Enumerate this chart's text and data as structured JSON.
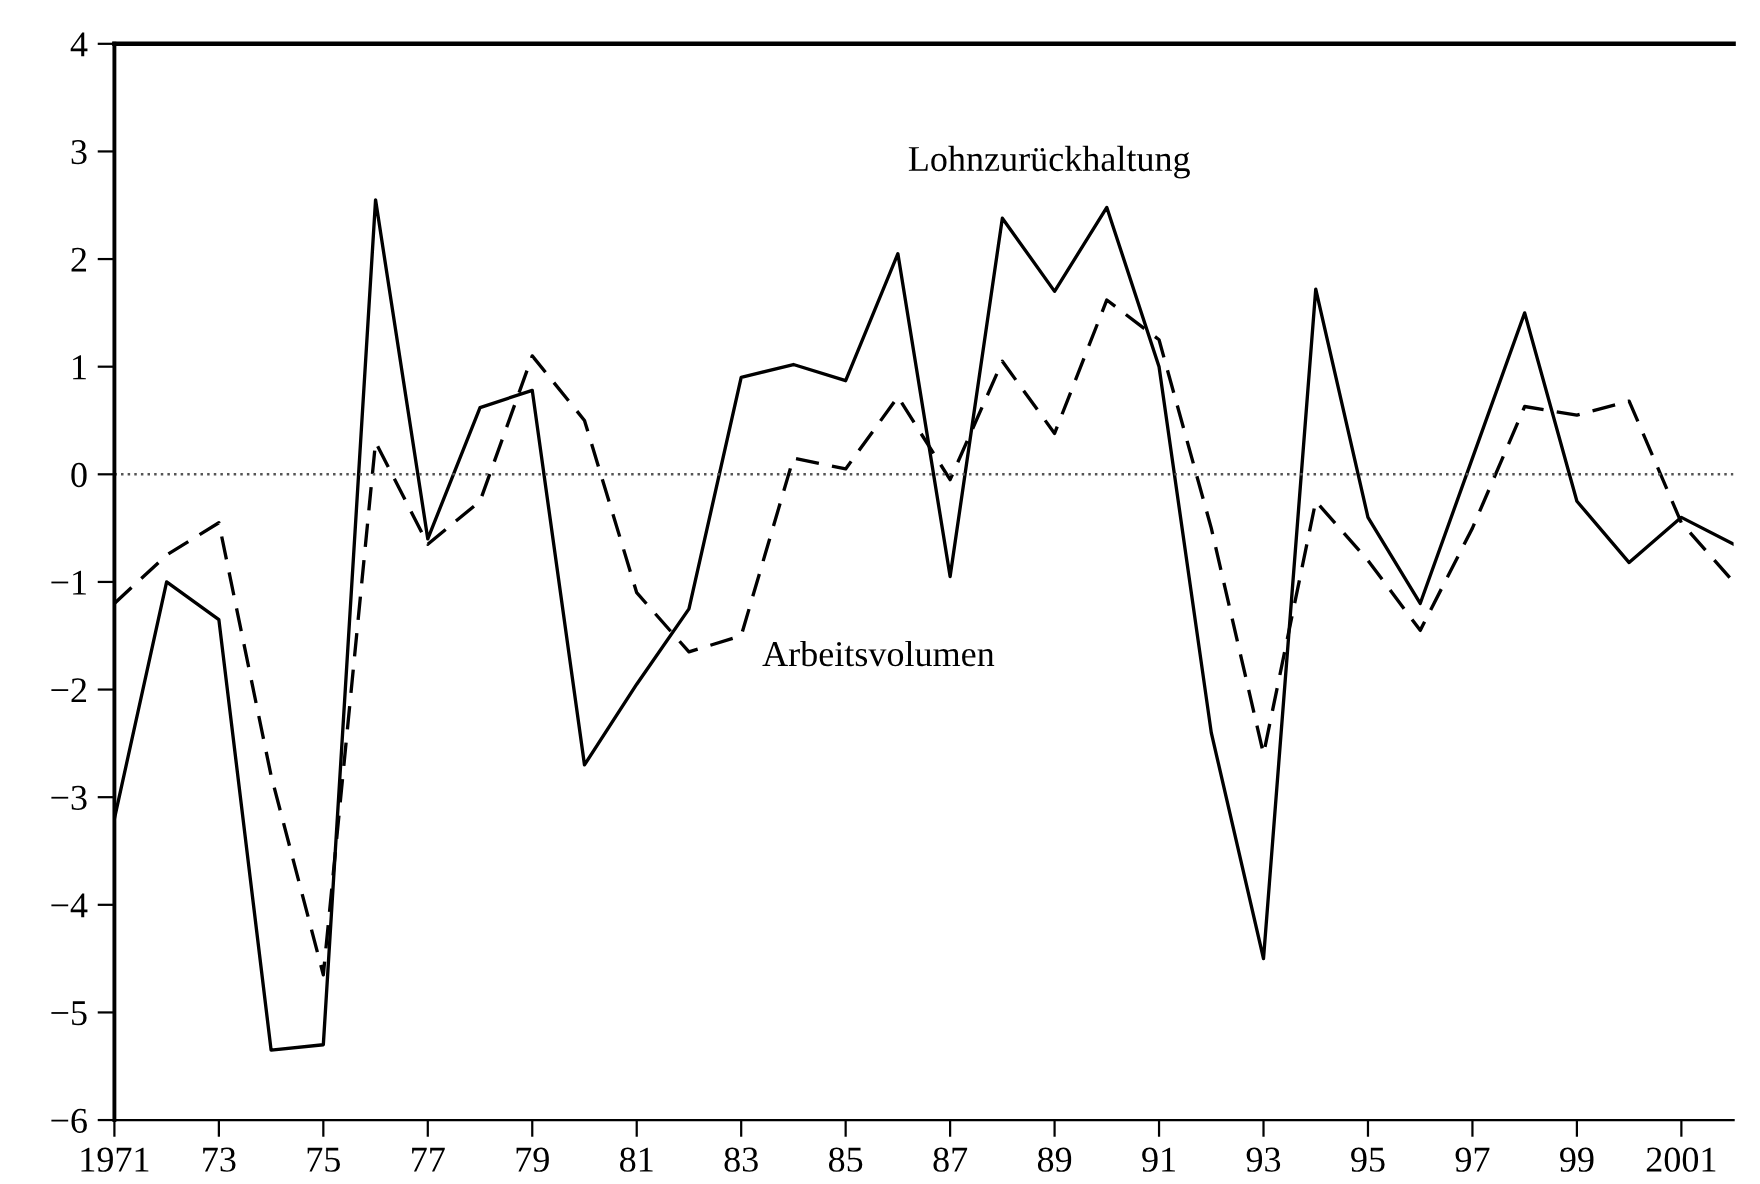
{
  "chart_data": {
    "type": "line",
    "x": [
      1971,
      1972,
      1973,
      1974,
      1975,
      1976,
      1977,
      1978,
      1979,
      1980,
      1981,
      1982,
      1983,
      1984,
      1985,
      1986,
      1987,
      1988,
      1989,
      1990,
      1991,
      1992,
      1993,
      1994,
      1995,
      1996,
      1997,
      1998,
      1999,
      2000,
      2001,
      2002
    ],
    "series": [
      {
        "name": "Lohnzurückhaltung",
        "color": "#000000",
        "line_style": "solid",
        "values": [
          -3.2,
          -1.0,
          -1.35,
          -5.35,
          -5.3,
          2.55,
          -0.6,
          0.62,
          0.78,
          -2.7,
          -1.95,
          -1.25,
          0.9,
          1.02,
          0.87,
          2.05,
          -0.95,
          2.38,
          1.7,
          2.48,
          1.0,
          -2.4,
          -4.5,
          1.72,
          -0.4,
          -1.2,
          0.15,
          1.5,
          -0.25,
          -0.82,
          -0.4,
          -0.65
        ]
      },
      {
        "name": "Arbeitsvolumen",
        "color": "#000000",
        "line_style": "dashed",
        "values": [
          -1.2,
          -0.75,
          -0.45,
          -2.8,
          -4.65,
          0.3,
          -0.65,
          -0.25,
          1.1,
          0.5,
          -1.1,
          -1.65,
          -1.5,
          0.15,
          0.05,
          0.72,
          -0.05,
          1.05,
          0.38,
          1.62,
          1.25,
          -0.5,
          -2.6,
          -0.25,
          -0.8,
          -1.45,
          -0.5,
          0.63,
          0.55,
          0.68,
          -0.45,
          -1.0
        ]
      }
    ],
    "xlim": [
      1971,
      2002
    ],
    "xticks": [
      {
        "value": 1971,
        "label": "1971"
      },
      {
        "value": 1973,
        "label": "73"
      },
      {
        "value": 1975,
        "label": "75"
      },
      {
        "value": 1977,
        "label": "77"
      },
      {
        "value": 1979,
        "label": "79"
      },
      {
        "value": 1981,
        "label": "81"
      },
      {
        "value": 1983,
        "label": "83"
      },
      {
        "value": 1985,
        "label": "85"
      },
      {
        "value": 1987,
        "label": "87"
      },
      {
        "value": 1989,
        "label": "89"
      },
      {
        "value": 1991,
        "label": "91"
      },
      {
        "value": 1993,
        "label": "93"
      },
      {
        "value": 1995,
        "label": "95"
      },
      {
        "value": 1997,
        "label": "97"
      },
      {
        "value": 1999,
        "label": "99"
      },
      {
        "value": 2001,
        "label": "2001"
      }
    ],
    "ylim": [
      -6,
      4
    ],
    "yticks": [
      -6,
      -5,
      -4,
      -3,
      -2,
      -1,
      0,
      1,
      2,
      3,
      4
    ],
    "ref_lines": [
      {
        "axis": "y",
        "value": 0,
        "color": "#555555",
        "line_style": "dotted"
      }
    ],
    "grid": false,
    "legend": false,
    "marker": "none"
  }
}
